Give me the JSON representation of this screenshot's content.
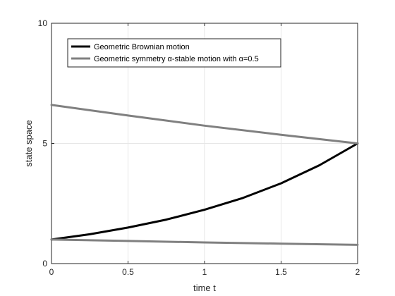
{
  "chart_data": {
    "type": "line",
    "xlabel": "time t",
    "ylabel": "state space",
    "xlim": [
      0,
      2
    ],
    "ylim": [
      0,
      10
    ],
    "xticks": [
      "0",
      "0.5",
      "1",
      "1.5",
      "2"
    ],
    "yticks": [
      "0",
      "5",
      "10"
    ],
    "grid": true,
    "legend_position": "top-left",
    "series": [
      {
        "name": "Geometric Brownian motion",
        "color": "#000000",
        "x": [
          0,
          0.25,
          0.5,
          0.75,
          1.0,
          1.25,
          1.5,
          1.75,
          2.0
        ],
        "y": [
          1.0,
          1.22,
          1.5,
          1.83,
          2.24,
          2.73,
          3.34,
          4.09,
          5.0
        ]
      },
      {
        "name": "Geometric symmetry α-stable motion with α=0.5",
        "color": "#808080",
        "x": [
          0,
          0.5,
          1.0,
          1.5,
          2.0
        ],
        "y": [
          6.6,
          6.16,
          5.74,
          5.36,
          5.0
        ]
      },
      {
        "name": "",
        "color": "#808080",
        "x": [
          0,
          0.5,
          1.0,
          1.5,
          2.0
        ],
        "y": [
          1.0,
          0.94,
          0.88,
          0.83,
          0.78
        ]
      }
    ]
  }
}
